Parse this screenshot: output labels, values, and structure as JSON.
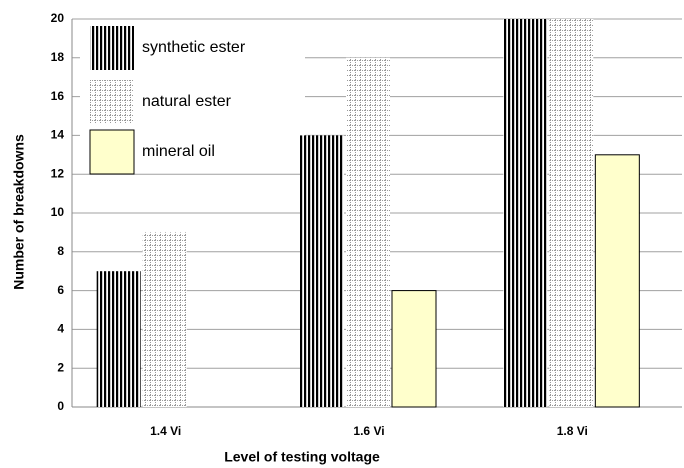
{
  "chart_data": {
    "type": "bar",
    "categories": [
      "1.4 Vi",
      "1.6 Vi",
      "1.8 Vi"
    ],
    "series": [
      {
        "name": "synthetic ester",
        "color": "#000000",
        "values": [
          7,
          14,
          20
        ]
      },
      {
        "name": "natural ester",
        "color": "#9a9a9a",
        "values": [
          9,
          18,
          20
        ]
      },
      {
        "name": "mineral oil",
        "color": "#ffffcc",
        "values": [
          0,
          6,
          13
        ]
      }
    ],
    "x_label": "Level of testing voltage",
    "y_label": "Number of breakdowns",
    "ylim": [
      0,
      20
    ],
    "yticks": [
      0,
      2,
      4,
      6,
      8,
      10,
      12,
      14,
      16,
      18,
      20
    ],
    "grid": true,
    "legend": "upper left"
  }
}
